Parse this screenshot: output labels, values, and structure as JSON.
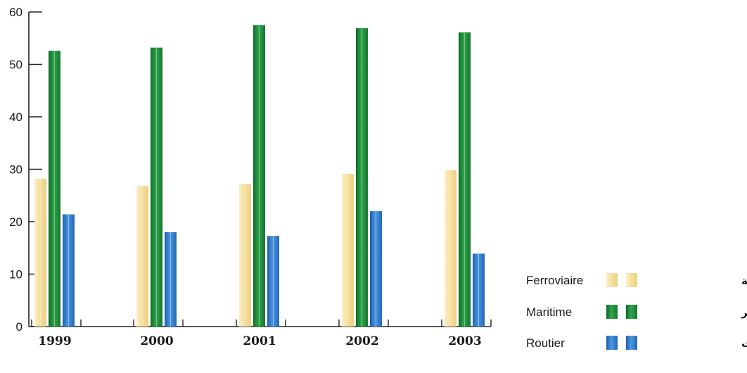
{
  "chart_data": {
    "type": "bar",
    "categories": [
      "1999",
      "2000",
      "2001",
      "2002",
      "2003"
    ],
    "series": [
      {
        "name": "Ferroviaire",
        "name_ar": "عبر السكك الحديدية",
        "values": [
          28.2,
          26.8,
          27.2,
          29.1,
          29.8
        ],
        "color": "#f5df9e"
      },
      {
        "name": "Maritime",
        "name_ar": "عبر البحر",
        "values": [
          52.6,
          53.2,
          57.5,
          56.9,
          56.1
        ],
        "color": "#1f8a3c"
      },
      {
        "name": "Routier",
        "name_ar": "عبر الطرقات",
        "values": [
          21.4,
          18.0,
          17.3,
          22.0,
          13.9
        ],
        "color": "#2f78c8"
      }
    ],
    "yticks": [
      0,
      10,
      20,
      30,
      40,
      50,
      60
    ],
    "ylim": [
      0,
      60
    ],
    "title": "",
    "xlabel": "",
    "ylabel": "",
    "grid": false,
    "legend_position": "bottom-right"
  }
}
